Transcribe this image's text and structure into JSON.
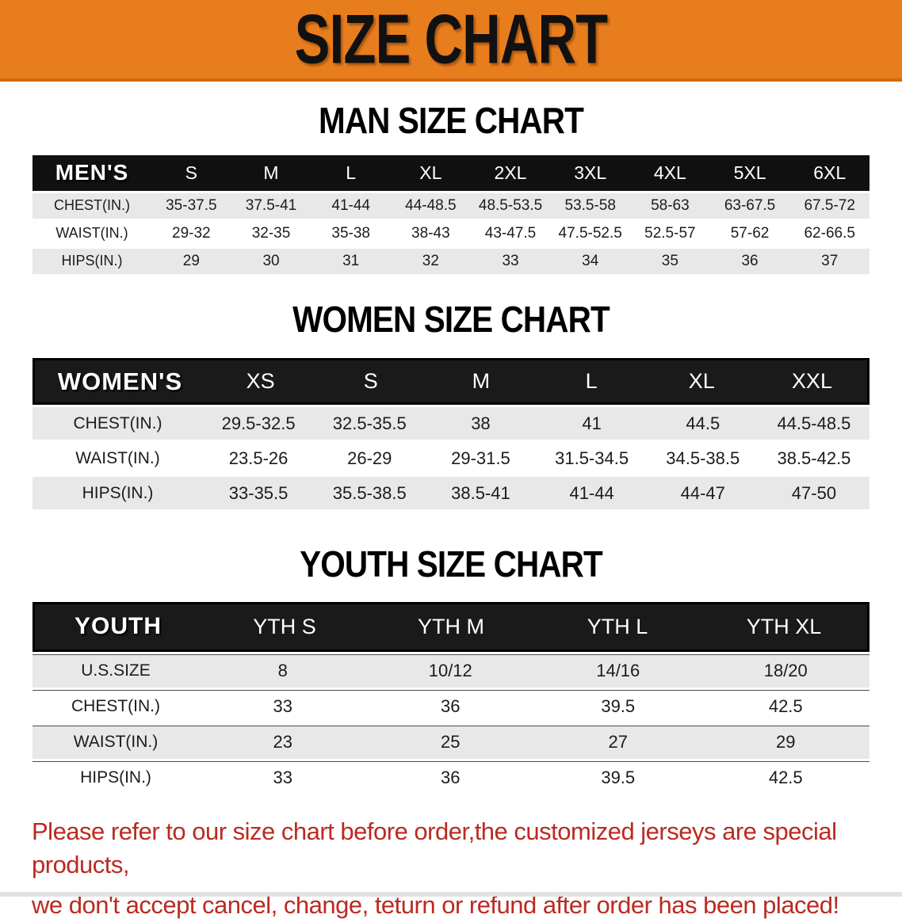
{
  "banner": {
    "title": "SIZE CHART"
  },
  "colors": {
    "banner-bg": "#e87d1e",
    "banner-edge": "#cf6a10",
    "header-black": "#101010",
    "header-inner": "#1a1a1a",
    "row-gray": "#e8e8e8",
    "disclaimer-red": "#bb2a21"
  },
  "sections": [
    {
      "heading": "MAN SIZE CHART",
      "table": {
        "label": "MEN'S",
        "columns": [
          "S",
          "M",
          "L",
          "XL",
          "2XL",
          "3XL",
          "4XL",
          "5XL",
          "6XL"
        ],
        "rows": [
          {
            "label": "CHEST(IN.)",
            "values": [
              "35-37.5",
              "37.5-41",
              "41-44",
              "44-48.5",
              "48.5-53.5",
              "53.5-58",
              "58-63",
              "63-67.5",
              "67.5-72"
            ]
          },
          {
            "label": "WAIST(IN.)",
            "values": [
              "29-32",
              "32-35",
              "35-38",
              "38-43",
              "43-47.5",
              "47.5-52.5",
              "52.5-57",
              "57-62",
              "62-66.5"
            ]
          },
          {
            "label": "HIPS(IN.)",
            "values": [
              "29",
              "30",
              "31",
              "32",
              "33",
              "34",
              "35",
              "36",
              "37"
            ]
          }
        ]
      }
    },
    {
      "heading": "WOMEN SIZE CHART",
      "table": {
        "label": "WOMEN'S",
        "columns": [
          "XS",
          "S",
          "M",
          "L",
          "XL",
          "XXL"
        ],
        "rows": [
          {
            "label": "CHEST(IN.)",
            "values": [
              "29.5-32.5",
              "32.5-35.5",
              "38",
              "41",
              "44.5",
              "44.5-48.5"
            ]
          },
          {
            "label": "WAIST(IN.)",
            "values": [
              "23.5-26",
              "26-29",
              "29-31.5",
              "31.5-34.5",
              "34.5-38.5",
              "38.5-42.5"
            ]
          },
          {
            "label": "HIPS(IN.)",
            "values": [
              "33-35.5",
              "35.5-38.5",
              "38.5-41",
              "41-44",
              "44-47",
              "47-50"
            ]
          }
        ]
      }
    },
    {
      "heading": "YOUTH SIZE CHART",
      "table": {
        "label": "YOUTH",
        "columns": [
          "YTH S",
          "YTH M",
          "YTH L",
          "YTH XL"
        ],
        "rows": [
          {
            "label": "U.S.SIZE",
            "values": [
              "8",
              "10/12",
              "14/16",
              "18/20"
            ]
          },
          {
            "label": "CHEST(IN.)",
            "values": [
              "33",
              "36",
              "39.5",
              "42.5"
            ]
          },
          {
            "label": "WAIST(IN.)",
            "values": [
              "23",
              "25",
              "27",
              "29"
            ]
          },
          {
            "label": "HIPS(IN.)",
            "values": [
              "33",
              "36",
              "39.5",
              "42.5"
            ]
          }
        ]
      }
    }
  ],
  "disclaimer": {
    "line1": "Please refer to our size chart before order,the customized jerseys are special products,",
    "line2": "we don't accept cancel, change, teturn or refund after order has been placed!"
  }
}
